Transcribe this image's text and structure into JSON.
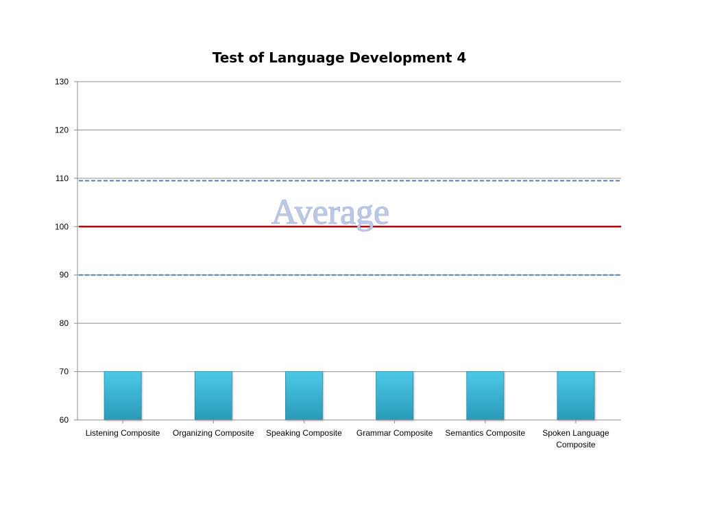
{
  "chart_data": {
    "type": "bar",
    "title": "Test of  Language Development 4",
    "categories": [
      "Listening Composite",
      "Organizing Composite",
      "Speaking Composite",
      "Grammar Composite",
      "Semantics Composite",
      "Spoken Language Composite"
    ],
    "values": [
      70,
      70,
      70,
      70,
      70,
      70
    ],
    "ylim": [
      60,
      130
    ],
    "yticks": [
      60,
      70,
      80,
      90,
      100,
      110,
      120,
      130
    ],
    "grid": true,
    "bar_color": "#3bb8d6",
    "reference_lines": [
      {
        "value": 100,
        "style": "solid",
        "color": "#c00000"
      },
      {
        "value": 109.5,
        "style": "dashed",
        "color": "#4a7ebb"
      },
      {
        "value": 90,
        "style": "dashed",
        "color": "#4a7ebb"
      }
    ],
    "annotation": {
      "text": "Average",
      "value": 103
    }
  }
}
